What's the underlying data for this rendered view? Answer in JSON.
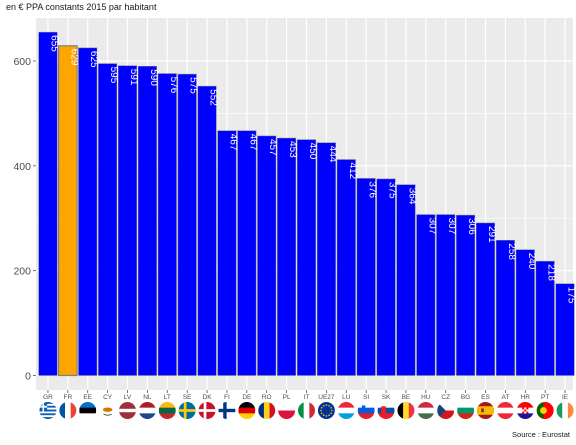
{
  "chart_data": {
    "type": "bar",
    "subtitle": "en € PPA constants 2015 par habitant",
    "categories": [
      "GR",
      "FR",
      "EE",
      "CY",
      "LV",
      "NL",
      "LT",
      "SE",
      "DK",
      "FI",
      "DE",
      "RO",
      "PL",
      "IT",
      "UE27",
      "LU",
      "SI",
      "SK",
      "BE",
      "HU",
      "CZ",
      "BG",
      "ES",
      "AT",
      "HR",
      "PT",
      "IE"
    ],
    "values": [
      655,
      629,
      625,
      595,
      591,
      590,
      576,
      575,
      552,
      467,
      467,
      457,
      453,
      450,
      444,
      412,
      376,
      375,
      364,
      307,
      307,
      306,
      291,
      258,
      240,
      218,
      175
    ],
    "value_labels": [
      "655",
      "629",
      "625",
      "595",
      "591",
      "590",
      "576",
      "575",
      "552",
      "467",
      "467",
      "457",
      "453",
      "450",
      "444",
      "412",
      "376",
      "375",
      "364",
      "307",
      "307",
      "306",
      "291",
      "258",
      "240",
      "218",
      "175"
    ],
    "yticks": [
      0,
      200,
      400,
      600
    ],
    "ylim": [
      0,
      660
    ],
    "grid": true,
    "highlight_category": "FR",
    "colors": {
      "default": "#0000ff",
      "highlight": "#ffa500",
      "panel": "#ebebeb",
      "grid": "#ffffff"
    },
    "flag_icons": [
      "greece-flag-icon",
      "france-flag-icon",
      "estonia-flag-icon",
      "cyprus-flag-icon",
      "latvia-flag-icon",
      "netherlands-flag-icon",
      "lithuania-flag-icon",
      "sweden-flag-icon",
      "denmark-flag-icon",
      "finland-flag-icon",
      "germany-flag-icon",
      "romania-flag-icon",
      "poland-flag-icon",
      "italy-flag-icon",
      "eu-flag-icon",
      "luxembourg-flag-icon",
      "slovenia-flag-icon",
      "slovakia-flag-icon",
      "belgium-flag-icon",
      "hungary-flag-icon",
      "czechia-flag-icon",
      "bulgaria-flag-icon",
      "spain-flag-icon",
      "austria-flag-icon",
      "croatia-flag-icon",
      "portugal-flag-icon",
      "ireland-flag-icon"
    ]
  },
  "source": "Source : Eurostat"
}
